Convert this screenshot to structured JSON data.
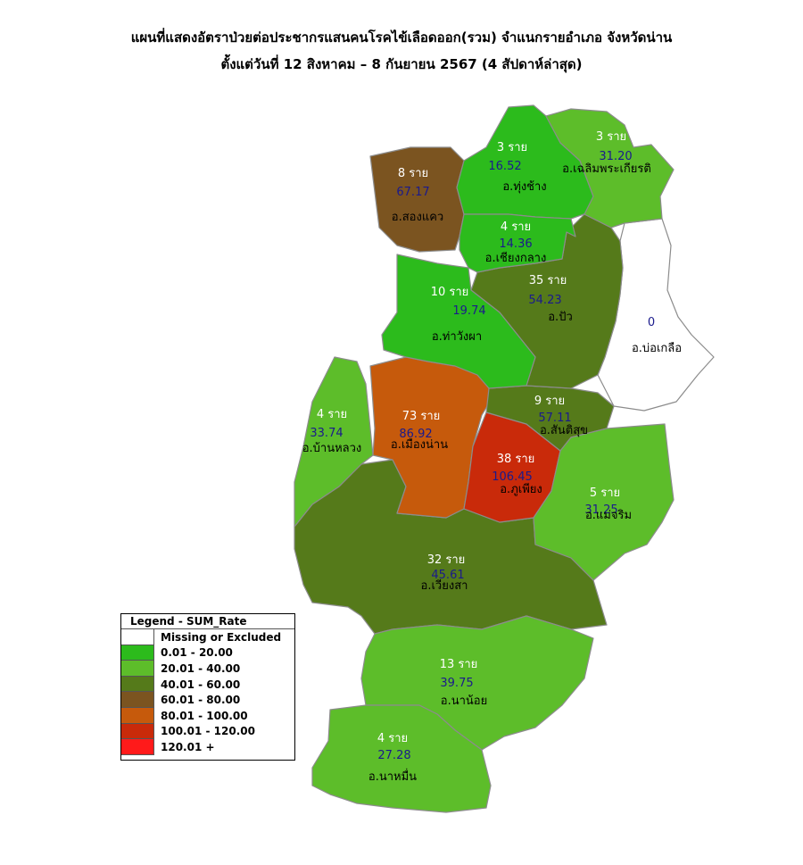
{
  "title": {
    "line1": "แผนที่แสดงอัตราป่วยต่อประชากรแสนคนโรคไข้เลือดออก(รวม) จำแนกรายอำเภอ จังหวัดน่าน",
    "line2": "ตั้งแต่วันที่ 12 สิงหาคม – 8 กันยายน 2567 (4 สัปดาห์ล่าสุด)"
  },
  "legend": {
    "title": "Legend - SUM_Rate",
    "items": [
      {
        "label": "Missing or Excluded",
        "color": "#ffffff"
      },
      {
        "label": "0.01 - 20.00",
        "color": "#2cbb1c"
      },
      {
        "label": "20.01 - 40.00",
        "color": "#5dbd2a"
      },
      {
        "label": "40.01 - 60.00",
        "color": "#557a1a"
      },
      {
        "label": "60.01 - 80.00",
        "color": "#7b5420"
      },
      {
        "label": "80.01 - 100.00",
        "color": "#c65a0c"
      },
      {
        "label": "100.01 - 120.00",
        "color": "#c92a0a"
      },
      {
        "label": "120.01 +",
        "color": "#ff1a1a"
      }
    ]
  },
  "districts": [
    {
      "id": "songkhwae",
      "name": "อ.สองแคว",
      "cases": "8 ราย",
      "rate": "67.17",
      "color": "#7b5420"
    },
    {
      "id": "thungchang",
      "name": "อ.ทุ่งช้าง",
      "cases": "3 ราย",
      "rate": "16.52",
      "color": "#2cbb1c"
    },
    {
      "id": "chaloemphrakiat",
      "name": "อ.เฉลิมพระเกียรติ",
      "cases": "3 ราย",
      "rate": "31.20",
      "color": "#5dbd2a"
    },
    {
      "id": "chiangklang",
      "name": "อ.เชียงกลาง",
      "cases": "4 ราย",
      "rate": "14.36",
      "color": "#2cbb1c"
    },
    {
      "id": "thawangpha",
      "name": "อ.ท่าวังผา",
      "cases": "10 ราย",
      "rate": "19.74",
      "color": "#2cbb1c"
    },
    {
      "id": "pua",
      "name": "อ.ปัว",
      "cases": "35 ราย",
      "rate": "54.23",
      "color": "#557a1a"
    },
    {
      "id": "boklua",
      "name": "อ.บ่อเกลือ",
      "cases": "",
      "rate": "0",
      "color": "#ffffff"
    },
    {
      "id": "banluang",
      "name": "อ.บ้านหลวง",
      "cases": "4 ราย",
      "rate": "33.74",
      "color": "#5dbd2a"
    },
    {
      "id": "muangnan",
      "name": "อ.เมืองน่าน",
      "cases": "73 ราย",
      "rate": "86.92",
      "color": "#c65a0c"
    },
    {
      "id": "santisuk",
      "name": "อ.สันติสุข",
      "cases": "9 ราย",
      "rate": "57.11",
      "color": "#557a1a"
    },
    {
      "id": "phukhiang",
      "name": "อ.ภูเพียง",
      "cases": "38 ราย",
      "rate": "106.45",
      "color": "#c92a0a"
    },
    {
      "id": "maecharim",
      "name": "อ.แม่จริม",
      "cases": "5 ราย",
      "rate": "31.25",
      "color": "#5dbd2a"
    },
    {
      "id": "wiangsa",
      "name": "อ.เวียงสา",
      "cases": "32 ราย",
      "rate": "45.61",
      "color": "#557a1a"
    },
    {
      "id": "naoi",
      "name": "อ.นาน้อย",
      "cases": "13 ราย",
      "rate": "39.75",
      "color": "#5dbd2a"
    },
    {
      "id": "namuen",
      "name": "อ.นาหมื่น",
      "cases": "4 ราย",
      "rate": "27.28",
      "color": "#5dbd2a"
    }
  ]
}
